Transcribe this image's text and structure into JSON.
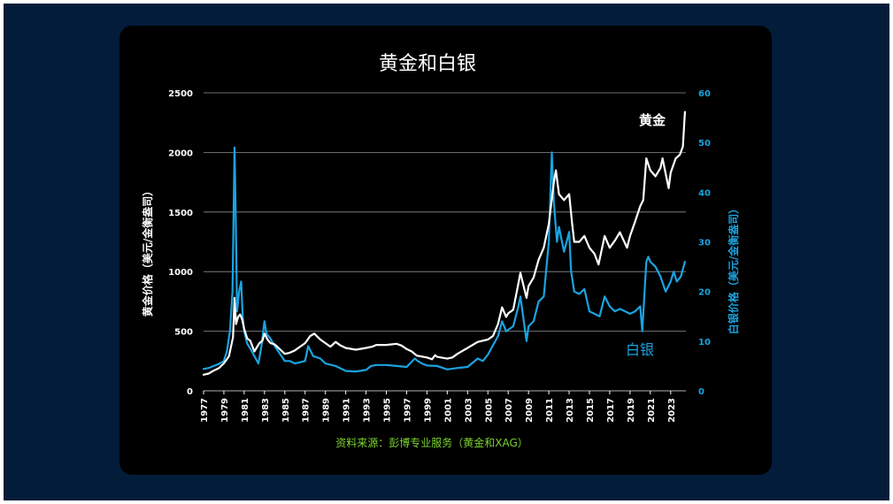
{
  "colors": {
    "background": "#031c3a",
    "panel": "#000000",
    "gold": "#ffffff",
    "silver": "#1ba3e0",
    "source": "#7dd22f",
    "grid": "#8a8f96"
  },
  "chart_data": {
    "type": "line",
    "title": "黄金和白银",
    "source": "资料来源：彭博专业服务（黄金和XAG）",
    "ylabel_left": "黄金价格（美元/金衡盎司）",
    "ylabel_right": "白银价格（美元/金衡盎司）",
    "ylim_left": [
      0,
      2500
    ],
    "ylim_right": [
      0,
      60
    ],
    "xlim": [
      1977,
      2024.5
    ],
    "grid": true,
    "x_ticks": [
      "1977",
      "1979",
      "1981",
      "1983",
      "1985",
      "1987",
      "1989",
      "1991",
      "1993",
      "1995",
      "1997",
      "1999",
      "2001",
      "2003",
      "2005",
      "2007",
      "2009",
      "2011",
      "2013",
      "2015",
      "2017",
      "2019",
      "2021",
      "2023"
    ],
    "y_ticks_left": [
      "0",
      "500",
      "1000",
      "1500",
      "2000",
      "2500"
    ],
    "y_ticks_right": [
      "0",
      "10",
      "20",
      "30",
      "40",
      "50",
      "60"
    ],
    "series": [
      {
        "name": "黄金",
        "axis": "left",
        "x": [
          1977.0,
          1977.5,
          1978.0,
          1978.5,
          1979.0,
          1979.5,
          1979.9,
          1980.05,
          1980.2,
          1980.4,
          1980.6,
          1980.8,
          1981.0,
          1981.3,
          1981.6,
          1982.0,
          1982.5,
          1982.8,
          1983.0,
          1983.3,
          1983.6,
          1984.0,
          1984.5,
          1985.0,
          1985.5,
          1986.0,
          1986.5,
          1987.0,
          1987.5,
          1987.9,
          1988.5,
          1989.0,
          1989.5,
          1990.0,
          1990.5,
          1991.0,
          1992.0,
          1993.0,
          1993.6,
          1994.0,
          1995.0,
          1996.0,
          1996.5,
          1997.0,
          1997.5,
          1998.0,
          1999.0,
          1999.5,
          1999.8,
          2000.0,
          2001.0,
          2001.5,
          2002.0,
          2003.0,
          2004.0,
          2005.0,
          2005.5,
          2006.0,
          2006.4,
          2006.8,
          2007.0,
          2007.5,
          2008.0,
          2008.2,
          2008.8,
          2009.0,
          2009.5,
          2010.0,
          2010.5,
          2011.0,
          2011.5,
          2011.7,
          2012.0,
          2012.5,
          2013.0,
          2013.3,
          2013.5,
          2014.0,
          2014.5,
          2015.0,
          2015.5,
          2015.9,
          2016.5,
          2017.0,
          2017.5,
          2018.0,
          2018.7,
          2019.0,
          2019.5,
          2020.0,
          2020.3,
          2020.6,
          2020.8,
          2021.0,
          2021.5,
          2022.0,
          2022.2,
          2022.8,
          2023.0,
          2023.5,
          2023.9,
          2024.2,
          2024.4
        ],
        "values": [
          135,
          145,
          170,
          190,
          230,
          290,
          450,
          780,
          560,
          620,
          640,
          600,
          520,
          440,
          420,
          330,
          400,
          420,
          480,
          430,
          400,
          390,
          350,
          310,
          320,
          340,
          370,
          400,
          460,
          480,
          430,
          400,
          370,
          410,
          380,
          360,
          345,
          360,
          370,
          385,
          385,
          395,
          380,
          350,
          330,
          295,
          280,
          265,
          300,
          285,
          270,
          280,
          310,
          360,
          410,
          430,
          460,
          560,
          700,
          620,
          650,
          680,
          900,
          990,
          780,
          880,
          950,
          1100,
          1200,
          1400,
          1750,
          1850,
          1650,
          1600,
          1650,
          1400,
          1250,
          1250,
          1300,
          1200,
          1150,
          1060,
          1300,
          1200,
          1260,
          1330,
          1200,
          1300,
          1420,
          1550,
          1600,
          1950,
          1900,
          1850,
          1800,
          1870,
          1950,
          1700,
          1830,
          1950,
          1980,
          2050,
          2340
        ]
      },
      {
        "name": "白银",
        "axis": "right",
        "x": [
          1977.0,
          1977.5,
          1978.0,
          1978.5,
          1979.0,
          1979.3,
          1979.6,
          1979.85,
          1980.05,
          1980.15,
          1980.3,
          1980.5,
          1980.7,
          1980.85,
          1981.0,
          1981.3,
          1981.6,
          1982.0,
          1982.4,
          1982.7,
          1983.0,
          1983.2,
          1983.6,
          1984.0,
          1984.5,
          1985.0,
          1985.5,
          1986.0,
          1987.0,
          1987.3,
          1987.8,
          1988.5,
          1989.0,
          1990.0,
          1991.0,
          1992.0,
          1993.0,
          1993.5,
          1994.0,
          1995.0,
          1996.0,
          1997.0,
          1997.8,
          1998.1,
          1998.5,
          1999.0,
          2000.0,
          2001.0,
          2002.0,
          2003.0,
          2004.0,
          2004.5,
          2005.0,
          2006.0,
          2006.4,
          2006.8,
          2007.5,
          2008.0,
          2008.2,
          2008.8,
          2009.0,
          2009.5,
          2010.0,
          2010.5,
          2011.0,
          2011.3,
          2011.5,
          2011.8,
          2012.0,
          2012.5,
          2013.0,
          2013.2,
          2013.5,
          2014.0,
          2014.5,
          2015.0,
          2015.5,
          2016.0,
          2016.5,
          2017.0,
          2017.5,
          2018.0,
          2019.0,
          2019.5,
          2020.0,
          2020.2,
          2020.4,
          2020.6,
          2020.8,
          2021.0,
          2021.5,
          2022.0,
          2022.5,
          2023.0,
          2023.3,
          2023.6,
          2024.0,
          2024.4
        ],
        "values": [
          4.4,
          4.6,
          5.0,
          5.4,
          6.0,
          8.0,
          12.0,
          20.0,
          49.0,
          38.0,
          16.0,
          20.0,
          22.0,
          15.0,
          12.0,
          9.5,
          8.5,
          7.0,
          5.5,
          9.0,
          14.0,
          11.5,
          10.5,
          9.0,
          7.5,
          6.0,
          6.0,
          5.5,
          6.0,
          9.0,
          7.0,
          6.5,
          5.5,
          5.0,
          4.0,
          3.9,
          4.2,
          5.0,
          5.2,
          5.2,
          5.0,
          4.8,
          6.5,
          6.0,
          5.5,
          5.1,
          5.0,
          4.3,
          4.6,
          4.8,
          6.5,
          6.0,
          7.3,
          11.0,
          14.0,
          12.0,
          13.0,
          17.0,
          19.0,
          10.0,
          13.0,
          14.0,
          18.0,
          19.0,
          30.0,
          48.0,
          38.0,
          30.0,
          33.0,
          28.0,
          32.0,
          24.0,
          20.0,
          19.5,
          20.5,
          16.0,
          15.5,
          15.0,
          19.0,
          17.0,
          16.0,
          16.5,
          15.5,
          16.0,
          17.0,
          12.0,
          19.0,
          26.0,
          27.0,
          26.0,
          25.0,
          23.0,
          20.0,
          22.0,
          24.0,
          22.0,
          23.0,
          26.0
        ]
      }
    ],
    "annotations": [
      {
        "text": "黄金",
        "series": "黄金"
      },
      {
        "text": "白银",
        "series": "白银"
      }
    ]
  }
}
